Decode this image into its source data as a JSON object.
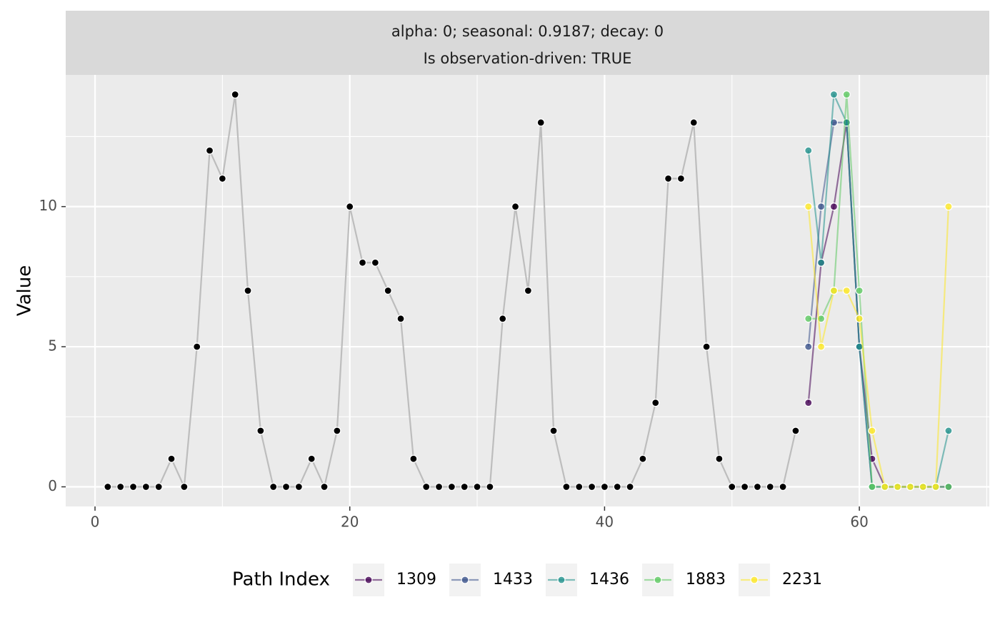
{
  "facet": {
    "line1": "alpha: 0; seasonal: 0.9187; decay: 0",
    "line2": "Is observation-driven: TRUE"
  },
  "colors": {
    "panel_bg": "#ebebeb",
    "strip_bg": "#d9d9d9",
    "grid": "#ffffff",
    "observed_line": "#bdbdbd",
    "observed_point": "#000000"
  },
  "chart_data": {
    "type": "line",
    "title": "",
    "xlabel": "",
    "ylabel": "Value",
    "xlim": [
      -2.3,
      70.2
    ],
    "ylim": [
      -0.7,
      14.7
    ],
    "x_ticks": [
      0,
      20,
      40,
      60
    ],
    "y_ticks": [
      0,
      5,
      10
    ],
    "grid": true,
    "legend_position": "bottom",
    "legend_title": "Path Index",
    "observed": {
      "x": [
        1,
        2,
        3,
        4,
        5,
        6,
        7,
        8,
        9,
        10,
        11,
        12,
        13,
        14,
        15,
        16,
        17,
        18,
        19,
        20,
        21,
        22,
        23,
        24,
        25,
        26,
        27,
        28,
        29,
        30,
        31,
        32,
        33,
        34,
        35,
        36,
        37,
        38,
        39,
        40,
        41,
        42,
        43,
        44,
        45,
        46,
        47,
        48,
        49,
        50,
        51,
        52,
        53,
        54,
        55
      ],
      "y": [
        0,
        0,
        0,
        0,
        0,
        1,
        0,
        5,
        12,
        11,
        14,
        7,
        2,
        0,
        0,
        0,
        1,
        0,
        2,
        10,
        8,
        8,
        7,
        6,
        1,
        0,
        0,
        0,
        0,
        0,
        0,
        6,
        10,
        7,
        13,
        2,
        0,
        0,
        0,
        0,
        0,
        0,
        1,
        3,
        11,
        11,
        13,
        5,
        1,
        0,
        0,
        0,
        0,
        0,
        2
      ]
    },
    "series": [
      {
        "name": "1309",
        "color": "#440154",
        "x": [
          56,
          57,
          58,
          59,
          60,
          61,
          62,
          63,
          64,
          65,
          66,
          67
        ],
        "values": [
          3,
          8,
          10,
          13,
          5,
          1,
          0,
          0,
          0,
          0,
          0,
          0
        ]
      },
      {
        "name": "1433",
        "color": "#3b528b",
        "x": [
          56,
          57,
          58,
          59,
          60,
          61,
          62,
          63,
          64,
          65,
          66,
          67
        ],
        "values": [
          5,
          10,
          13,
          13,
          5,
          0,
          0,
          0,
          0,
          0,
          0,
          0
        ]
      },
      {
        "name": "1436",
        "color": "#21918c",
        "x": [
          56,
          57,
          58,
          59,
          60,
          61,
          62,
          63,
          64,
          65,
          66,
          67
        ],
        "values": [
          12,
          8,
          14,
          13,
          5,
          0,
          0,
          0,
          0,
          0,
          0,
          2
        ]
      },
      {
        "name": "1883",
        "color": "#5ec962",
        "x": [
          56,
          57,
          58,
          59,
          60,
          61,
          62,
          63,
          64,
          65,
          66,
          67
        ],
        "values": [
          6,
          6,
          7,
          14,
          7,
          0,
          0,
          0,
          0,
          0,
          0,
          0
        ]
      },
      {
        "name": "2231",
        "color": "#fde725",
        "x": [
          56,
          57,
          58,
          59,
          60,
          61,
          62,
          63,
          64,
          65,
          66,
          67
        ],
        "values": [
          10,
          5,
          7,
          7,
          6,
          2,
          0,
          0,
          0,
          0,
          0,
          10
        ]
      }
    ]
  }
}
